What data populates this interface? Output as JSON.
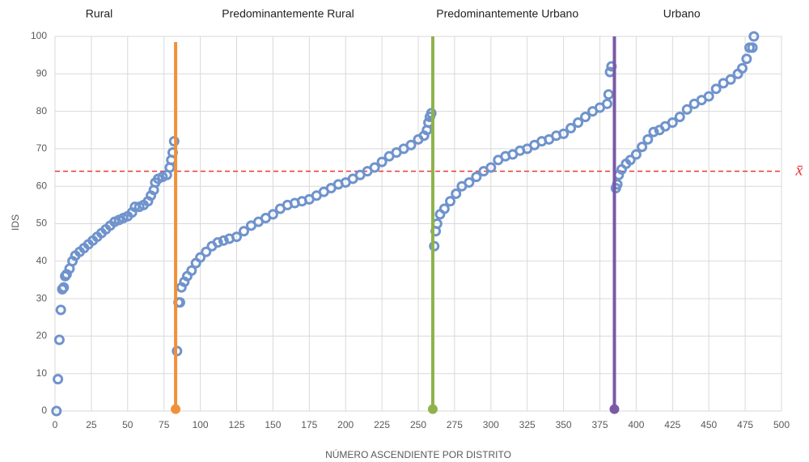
{
  "chart_data": {
    "type": "scatter",
    "xlabel": "NÚMERO ASCENDIENTE POR DISTRITO",
    "ylabel": "IDS",
    "region_labels": [
      "Rural",
      "Predominantemente Rural",
      "Predominantemente Urbano",
      "Urbano"
    ],
    "color": "#6f93cc",
    "grid": true,
    "xlim": [
      0,
      500
    ],
    "ylim": [
      0,
      100
    ],
    "xticks": [
      0,
      25,
      50,
      75,
      100,
      125,
      150,
      175,
      200,
      225,
      250,
      275,
      300,
      325,
      350,
      375,
      400,
      425,
      450,
      475,
      500
    ],
    "yticks": [
      0,
      10,
      20,
      30,
      40,
      50,
      60,
      70,
      80,
      90,
      100
    ],
    "mean_line": {
      "value": 64,
      "label": "x̄",
      "color": "#e8393a"
    },
    "dividers": [
      {
        "x": 83,
        "top": 98.5,
        "bottom": 0.5,
        "color": "#f0913a"
      },
      {
        "x": 260,
        "top": 100,
        "bottom": 0.5,
        "color": "#8fb24a"
      },
      {
        "x": 385,
        "top": 100,
        "bottom": 0.5,
        "color": "#7a59a6"
      }
    ],
    "x": [
      1,
      2,
      3,
      4,
      5,
      6,
      7,
      8,
      10,
      12,
      14,
      17,
      20,
      23,
      26,
      29,
      32,
      35,
      38,
      41,
      44,
      47,
      50,
      53,
      55,
      58,
      61,
      64,
      66,
      68,
      69,
      71,
      74,
      77,
      79,
      80,
      81,
      82,
      84,
      85,
      86,
      87,
      89,
      91,
      94,
      97,
      100,
      104,
      108,
      112,
      116,
      120,
      125,
      130,
      135,
      140,
      145,
      150,
      155,
      160,
      165,
      170,
      175,
      180,
      185,
      190,
      195,
      200,
      205,
      210,
      215,
      220,
      225,
      230,
      235,
      240,
      245,
      250,
      254,
      256,
      257,
      258,
      259,
      261,
      262,
      263,
      265,
      268,
      272,
      276,
      280,
      285,
      290,
      295,
      300,
      305,
      310,
      315,
      320,
      325,
      330,
      335,
      340,
      345,
      350,
      355,
      360,
      365,
      370,
      375,
      380,
      381,
      382,
      383,
      386,
      387,
      388,
      390,
      393,
      396,
      400,
      404,
      408,
      412,
      416,
      420,
      425,
      430,
      435,
      440,
      445,
      450,
      455,
      460,
      465,
      470,
      473,
      476,
      478,
      480,
      481
    ],
    "values": [
      0,
      8.5,
      19,
      27,
      32.5,
      33,
      36,
      36.5,
      38,
      40,
      41.5,
      42.5,
      43.5,
      44.5,
      45.5,
      46.5,
      47.5,
      48.5,
      49.5,
      50.5,
      51,
      51.5,
      52,
      53,
      54.5,
      54.5,
      55,
      56,
      57.5,
      59,
      61,
      62,
      62.5,
      63,
      65,
      67,
      69,
      72,
      16,
      29,
      29,
      33,
      34.5,
      36,
      37.5,
      39.5,
      41,
      42.5,
      44,
      45,
      45.5,
      46,
      46.5,
      48,
      49.5,
      50.5,
      51.5,
      52.5,
      54,
      55,
      55.5,
      56,
      56.5,
      57.5,
      58.5,
      59.5,
      60.5,
      61,
      62,
      63,
      64,
      65,
      66.5,
      68,
      69,
      70,
      71,
      72.5,
      73.5,
      75,
      77,
      78.5,
      79.5,
      44,
      48,
      50,
      52.5,
      54,
      56,
      58,
      60,
      61,
      62.5,
      64,
      65,
      67,
      68,
      68.5,
      69.5,
      70,
      71,
      72,
      72.5,
      73.5,
      74,
      75.5,
      77,
      78.5,
      80,
      81,
      82,
      84.5,
      90.5,
      92,
      59.5,
      60.5,
      63,
      64.5,
      66,
      67,
      68.5,
      70.5,
      72.5,
      74.5,
      75,
      76,
      77,
      78.5,
      80.5,
      82,
      83,
      84,
      86,
      87.5,
      88.5,
      90,
      91.5,
      94,
      97,
      97,
      100
    ]
  }
}
